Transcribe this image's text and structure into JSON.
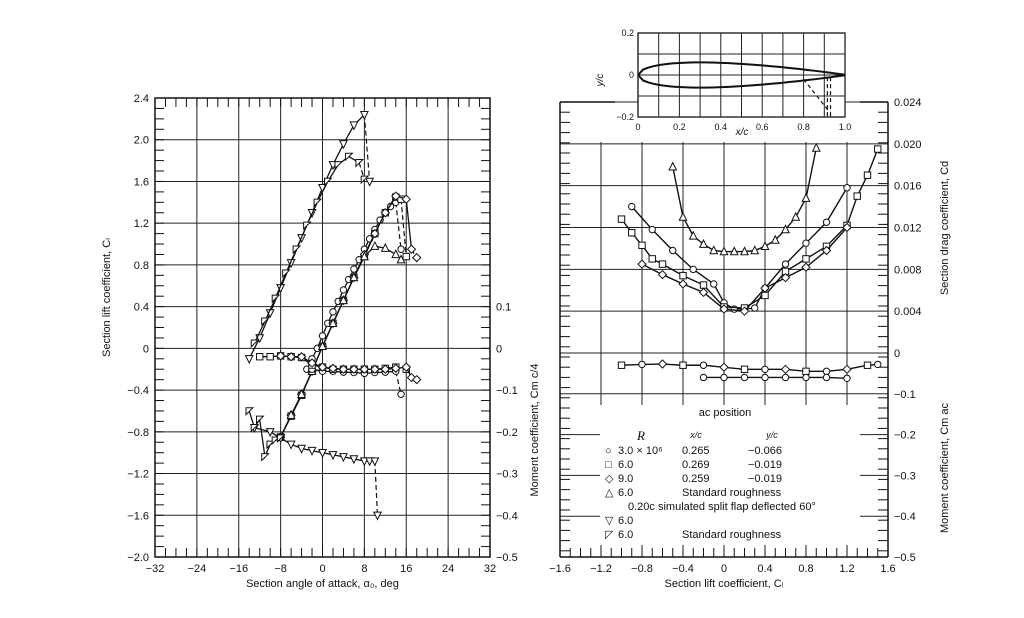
{
  "chart_data": [
    {
      "id": "lift_moment_vs_alpha",
      "type": "line",
      "title": "",
      "xlabel": "Section angle of attack, α0, deg",
      "ylabel_left": "Section lift coefficient, Cl",
      "ylabel_right": "Moment coefficient, Cm c/4",
      "xlim": [
        -32,
        32
      ],
      "ylim_left": [
        -2.0,
        2.4
      ],
      "ylim_right": [
        -0.5,
        0.2
      ],
      "x_ticks": [
        "-32",
        "-24",
        "-16",
        "-8",
        "0",
        "8",
        "16",
        "24",
        "32"
      ],
      "y_ticks_left": [
        "-2.0",
        "-1.6",
        "-1.2",
        "-0.8",
        "-0.4",
        "0",
        "0.4",
        "0.8",
        "1.2",
        "1.6",
        "2.0",
        "2.4"
      ],
      "y_ticks_right": [
        "-0.5",
        "-0.4",
        "-0.3",
        "-0.2",
        "-0.1",
        "0",
        "0.1"
      ],
      "grid": true,
      "series": [
        {
          "name": "R=3.0x10^6 Cl",
          "marker": "circle",
          "x": [
            -3,
            -2,
            -1,
            0,
            1,
            2,
            3,
            4,
            5,
            6,
            7,
            8,
            9,
            10,
            11,
            12,
            13,
            14,
            15
          ],
          "y": [
            -0.2,
            -0.1,
            0.0,
            0.12,
            0.24,
            0.35,
            0.45,
            0.56,
            0.66,
            0.76,
            0.85,
            0.95,
            1.05,
            1.14,
            1.23,
            1.3,
            1.36,
            1.4,
            0.95
          ]
        },
        {
          "name": "R=6.0x10^6 Cl",
          "marker": "square",
          "x": [
            -8,
            -6,
            -4,
            -2,
            0,
            2,
            4,
            6,
            8,
            10,
            12,
            14,
            15,
            16
          ],
          "y": [
            -0.85,
            -0.65,
            -0.45,
            -0.22,
            0.02,
            0.24,
            0.46,
            0.68,
            0.88,
            1.1,
            1.3,
            1.45,
            1.43,
            0.88
          ]
        },
        {
          "name": "R=9.0x10^6 Cl",
          "marker": "diamond",
          "x": [
            -8,
            -6,
            -4,
            -2,
            0,
            2,
            4,
            6,
            8,
            10,
            12,
            14,
            16,
            17,
            18
          ],
          "y": [
            -0.85,
            -0.64,
            -0.44,
            -0.22,
            0.02,
            0.24,
            0.46,
            0.68,
            0.9,
            1.1,
            1.3,
            1.46,
            1.43,
            0.95,
            0.87
          ]
        },
        {
          "name": "R=6.0x10^6 std roughness Cl",
          "marker": "triangle-up",
          "x": [
            -8,
            -6,
            -4,
            -2,
            0,
            2,
            4,
            6,
            8,
            10,
            12,
            14,
            15
          ],
          "y": [
            -0.85,
            -0.64,
            -0.44,
            -0.22,
            0.02,
            0.24,
            0.46,
            0.68,
            0.88,
            0.98,
            0.96,
            0.9,
            0.85
          ]
        },
        {
          "name": "Split flap R=6.0x10^6 Cl",
          "marker": "triangle-down",
          "x": [
            -14,
            -12,
            -10,
            -8,
            -6,
            -4,
            -2,
            0,
            2,
            4,
            6,
            8,
            9
          ],
          "y": [
            -0.1,
            0.1,
            0.34,
            0.58,
            0.82,
            1.06,
            1.3,
            1.54,
            1.76,
            1.96,
            2.14,
            2.24,
            1.6
          ]
        },
        {
          "name": "Split flap R=6.0x10^6 std roughness Cl",
          "marker": "triangle-left",
          "x": [
            -13,
            -11,
            -9,
            -7,
            -5,
            -3,
            -1,
            1,
            3,
            5,
            7,
            8
          ],
          "y": [
            0.05,
            0.26,
            0.48,
            0.72,
            0.95,
            1.18,
            1.4,
            1.6,
            1.76,
            1.84,
            1.78,
            1.62
          ]
        },
        {
          "name": "R=3.0x10^6 Cm",
          "marker": "circle",
          "axis": "right",
          "x": [
            -2,
            0,
            2,
            4,
            6,
            8,
            10,
            12,
            14,
            15
          ],
          "y": [
            -0.05,
            -0.055,
            -0.055,
            -0.057,
            -0.058,
            -0.06,
            -0.058,
            -0.057,
            -0.055,
            -0.11
          ]
        },
        {
          "name": "R=6.0x10^6 Cm",
          "marker": "square",
          "axis": "right",
          "x": [
            -12,
            -10,
            -8,
            -6,
            -4,
            -2,
            0,
            2,
            4,
            6,
            8,
            10,
            12,
            14,
            16
          ],
          "y": [
            -0.02,
            -0.02,
            -0.018,
            -0.02,
            -0.022,
            -0.04,
            -0.045,
            -0.05,
            -0.05,
            -0.05,
            -0.05,
            -0.05,
            -0.048,
            -0.045,
            -0.05
          ]
        },
        {
          "name": "R=9.0x10^6 Cm",
          "marker": "diamond",
          "axis": "right",
          "x": [
            -8,
            -6,
            -4,
            -2,
            0,
            2,
            4,
            6,
            8,
            10,
            12,
            14,
            16,
            17,
            18
          ],
          "y": [
            -0.018,
            -0.02,
            -0.02,
            -0.035,
            -0.045,
            -0.048,
            -0.05,
            -0.05,
            -0.05,
            -0.05,
            -0.05,
            -0.048,
            -0.045,
            -0.07,
            -0.075
          ]
        },
        {
          "name": "Split flap R=6.0x10^6 Cm",
          "marker": "triangle-down",
          "axis": "right",
          "x": [
            -13,
            -10,
            -8,
            -6,
            -4,
            -2,
            0,
            2,
            4,
            6,
            8,
            9,
            10,
            10.5
          ],
          "y": [
            -0.19,
            -0.2,
            -0.215,
            -0.23,
            -0.24,
            -0.245,
            -0.25,
            -0.255,
            -0.26,
            -0.265,
            -0.27,
            -0.27,
            -0.27,
            -0.4
          ]
        },
        {
          "name": "Split flap std roughness Cm",
          "marker": "triangle-left",
          "axis": "right",
          "x": [
            -14,
            -13,
            -12,
            -11,
            -10,
            -9,
            -8
          ],
          "y": [
            -0.15,
            -0.19,
            -0.17,
            -0.26,
            -0.23,
            -0.22,
            -0.215
          ]
        }
      ]
    },
    {
      "id": "drag_moment_vs_cl",
      "type": "line",
      "title": "",
      "xlabel": "Section lift coefficient, Cl",
      "ylabel_left": "Moment coefficient, Cm c/4",
      "ylabel_right_top": "Section drag coefficient, Cd",
      "ylabel_right_bottom": "Moment coefficient, Cm ac",
      "xlim": [
        -1.6,
        1.6
      ],
      "ylim_drag": [
        0,
        0.024
      ],
      "ylim_moment": [
        -0.5,
        0
      ],
      "x_ticks": [
        "-1.6",
        "-1.2",
        "-0.8",
        "-0.4",
        "0",
        "0.4",
        "0.8",
        "1.2",
        "1.6"
      ],
      "y_ticks_drag": [
        "0",
        "0.004",
        "0.008",
        "0.012",
        "0.016",
        "0.020",
        "0.024"
      ],
      "y_ticks_moment": [
        "-0.5",
        "-0.4",
        "-0.3",
        "-0.2",
        "-0.1",
        "0"
      ],
      "grid": true,
      "series": [
        {
          "name": "R=3.0x10^6 Cd",
          "marker": "circle",
          "x": [
            -0.9,
            -0.7,
            -0.5,
            -0.3,
            -0.1,
            0.0,
            0.1,
            0.2,
            0.3,
            0.4,
            0.6,
            0.8,
            1.0,
            1.2
          ],
          "y": [
            0.014,
            0.0118,
            0.0098,
            0.008,
            0.0066,
            0.0048,
            0.0042,
            0.0042,
            0.0043,
            0.0062,
            0.0085,
            0.0105,
            0.0125,
            0.0158
          ]
        },
        {
          "name": "R=6.0x10^6 Cd",
          "marker": "square",
          "x": [
            -1.0,
            -0.9,
            -0.8,
            -0.7,
            -0.6,
            -0.4,
            -0.2,
            0.0,
            0.2,
            0.4,
            0.6,
            0.8,
            1.0,
            1.2,
            1.3,
            1.4,
            1.5
          ],
          "y": [
            0.0128,
            0.0115,
            0.0103,
            0.009,
            0.0085,
            0.0074,
            0.0065,
            0.0044,
            0.0043,
            0.0055,
            0.0078,
            0.009,
            0.0102,
            0.0122,
            0.015,
            0.017,
            0.0195
          ]
        },
        {
          "name": "R=9.0x10^6 Cd",
          "marker": "diamond",
          "x": [
            -0.8,
            -0.6,
            -0.4,
            -0.2,
            0.0,
            0.2,
            0.4,
            0.6,
            0.8,
            1.0,
            1.2
          ],
          "y": [
            0.0085,
            0.0075,
            0.0066,
            0.0058,
            0.0042,
            0.004,
            0.0062,
            0.0072,
            0.0082,
            0.0098,
            0.012
          ]
        },
        {
          "name": "R=6.0x10^6 std roughness Cd",
          "marker": "triangle-up",
          "x": [
            -0.5,
            -0.4,
            -0.3,
            -0.2,
            -0.1,
            0.0,
            0.1,
            0.2,
            0.3,
            0.4,
            0.5,
            0.6,
            0.7,
            0.8,
            0.9
          ],
          "y": [
            0.0178,
            0.013,
            0.0112,
            0.0104,
            0.0098,
            0.0097,
            0.0097,
            0.0097,
            0.0098,
            0.0102,
            0.0108,
            0.0118,
            0.013,
            0.0148,
            0.0196
          ]
        },
        {
          "name": "Cm ac all",
          "marker": "mixed",
          "axis": "moment",
          "x": [
            -1.0,
            -0.8,
            -0.6,
            -0.4,
            -0.2,
            0.0,
            0.2,
            0.4,
            0.6,
            0.8,
            1.0,
            1.2,
            1.4,
            1.5
          ],
          "y": [
            -0.03,
            -0.028,
            -0.027,
            -0.03,
            -0.03,
            -0.035,
            -0.04,
            -0.04,
            -0.04,
            -0.045,
            -0.045,
            -0.04,
            -0.03,
            -0.028
          ]
        },
        {
          "name": "R=3.0x10^6 Cm ac",
          "marker": "circle",
          "axis": "moment",
          "x": [
            -0.2,
            0.0,
            0.2,
            0.4,
            0.6,
            0.8,
            1.0,
            1.2
          ],
          "y": [
            -0.06,
            -0.06,
            -0.06,
            -0.06,
            -0.06,
            -0.06,
            -0.06,
            -0.062
          ]
        }
      ]
    },
    {
      "id": "airfoil_profile_inset",
      "type": "line",
      "xlabel": "x/c",
      "ylabel": "y/c",
      "xlim": [
        0,
        1.0
      ],
      "ylim": [
        -0.2,
        0.2
      ],
      "x_ticks": [
        "0",
        "0.2",
        "0.4",
        "0.6",
        "0.8",
        "1.0"
      ],
      "y_ticks": [
        "-0.2",
        "0",
        "0.2"
      ],
      "grid": true,
      "annotation": "split flap dashed at x/c≈0.8–0.92"
    }
  ],
  "legend": {
    "title": "ac position",
    "header_R": "R",
    "header_x": "x/c",
    "header_y": "y/c",
    "rows": [
      {
        "marker": "○",
        "R": "3.0 × 10⁶",
        "x": "0.265",
        "y": "−0.066"
      },
      {
        "marker": "□",
        "R": "6.0",
        "x": "0.269",
        "y": "−0.019"
      },
      {
        "marker": "◇",
        "R": "9.0",
        "x": "0.259",
        "y": "−0.019"
      },
      {
        "marker": "△",
        "R": "6.0",
        "x": "Standard roughness",
        "y": ""
      },
      {
        "marker": "",
        "R": "0.20c simulated split flap deflected 60°",
        "x": "",
        "y": ""
      },
      {
        "marker": "▽",
        "R": "6.0",
        "x": "",
        "y": ""
      },
      {
        "marker": "◸",
        "R": "6.0",
        "x": "Standard roughness",
        "y": ""
      }
    ]
  },
  "labels": {
    "left_x": "Section angle of attack, α₀, deg",
    "left_y": "Section lift coefficient, Cₗ",
    "left_y2": "Moment coefficient, Cm c/4",
    "right_x": "Section lift coefficient, Cₗ",
    "right_y_left": "Moment coefficient, Cm c/4",
    "right_y_drag": "Section drag coefficient, Cd",
    "right_y_mac": "Moment coefficient, Cm ac",
    "inset_x": "x/c",
    "inset_y": "y/c"
  }
}
